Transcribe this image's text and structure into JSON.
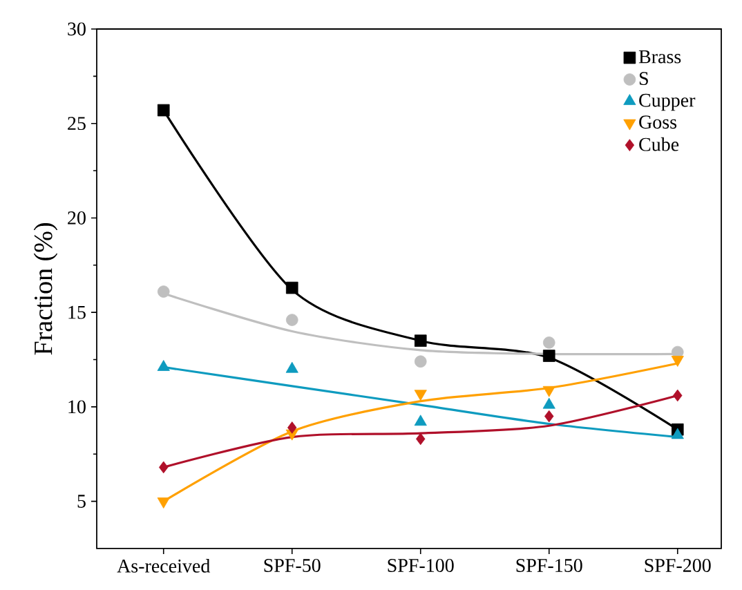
{
  "chart_data": {
    "type": "scatter",
    "ylabel": "Fraction (%)",
    "categories": [
      "As-received",
      "SPF-50",
      "SPF-100",
      "SPF-150",
      "SPF-200"
    ],
    "ylim": [
      2.5,
      30
    ],
    "yticks": [
      5,
      10,
      15,
      20,
      25,
      30
    ],
    "grid": false,
    "legend": "top right",
    "series": [
      {
        "name": "Brass",
        "color": "#000000",
        "marker": "square",
        "values": [
          25.7,
          16.3,
          13.5,
          12.7,
          8.8
        ]
      },
      {
        "name": "S",
        "color": "#bfbfbf",
        "marker": "circle",
        "values": [
          16.1,
          14.6,
          12.4,
          13.4,
          12.9
        ]
      },
      {
        "name": "Cupper",
        "color": "#0e9bbf",
        "marker": "triangle",
        "values": [
          12.1,
          12.0,
          9.2,
          10.1,
          8.5
        ]
      },
      {
        "name": "Goss",
        "color": "#ffa000",
        "marker": "triangle-down",
        "values": [
          5.0,
          8.6,
          10.7,
          10.9,
          12.5
        ]
      },
      {
        "name": "Cube",
        "color": "#b0102a",
        "marker": "diamond",
        "values": [
          6.8,
          8.9,
          8.3,
          9.5,
          10.6
        ]
      },
      {
        "type": "line",
        "color": "#000000",
        "marker": "none",
        "values": [
          25.7,
          16.2,
          13.5,
          12.6,
          8.8
        ]
      },
      {
        "type": "line",
        "color": "#bfbfbf",
        "marker": "none",
        "values": [
          16.0,
          14.0,
          13.0,
          12.8,
          12.8
        ]
      },
      {
        "type": "line",
        "color": "#0e9bbf",
        "marker": "none",
        "values": [
          12.1,
          11.1,
          10.1,
          9.1,
          8.4
        ]
      },
      {
        "type": "line",
        "color": "#ffa000",
        "marker": "none",
        "values": [
          5.0,
          8.7,
          10.3,
          11.0,
          12.3
        ]
      },
      {
        "type": "line",
        "color": "#b0102a",
        "marker": "none",
        "values": [
          6.8,
          8.4,
          8.6,
          9.0,
          10.6
        ]
      }
    ]
  }
}
